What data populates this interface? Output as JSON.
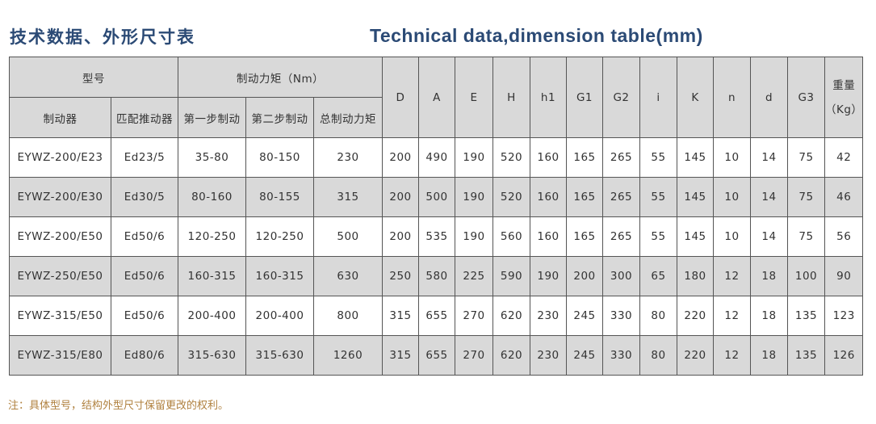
{
  "title_cn": "技术数据、外形尺寸表",
  "title_en": "Technical data,dimension table(mm)",
  "table": {
    "group_model": "型号",
    "group_torque": "制动力矩（Nm）",
    "sub_headers": [
      "制动器",
      "匹配推动器",
      "第一步制动",
      "第二步制动",
      "总制动力矩"
    ],
    "dim_headers": [
      "D",
      "A",
      "E",
      "H",
      "h1",
      "G1",
      "G2",
      "i",
      "K",
      "n",
      "d",
      "G3"
    ],
    "weight_header": "重量",
    "weight_unit": "（Kg）",
    "rows": [
      [
        "EYWZ-200/E23",
        "Ed23/5",
        "35-80",
        "80-150",
        "230",
        "200",
        "490",
        "190",
        "520",
        "160",
        "165",
        "265",
        "55",
        "145",
        "10",
        "14",
        "75",
        "42"
      ],
      [
        "EYWZ-200/E30",
        "Ed30/5",
        "80-160",
        "80-155",
        "315",
        "200",
        "500",
        "190",
        "520",
        "160",
        "165",
        "265",
        "55",
        "145",
        "10",
        "14",
        "75",
        "46"
      ],
      [
        "EYWZ-200/E50",
        "Ed50/6",
        "120-250",
        "120-250",
        "500",
        "200",
        "535",
        "190",
        "560",
        "160",
        "165",
        "265",
        "55",
        "145",
        "10",
        "14",
        "75",
        "56"
      ],
      [
        "EYWZ-250/E50",
        "Ed50/6",
        "160-315",
        "160-315",
        "630",
        "250",
        "580",
        "225",
        "590",
        "190",
        "200",
        "300",
        "65",
        "180",
        "12",
        "18",
        "100",
        "90"
      ],
      [
        "EYWZ-315/E50",
        "Ed50/6",
        "200-400",
        "200-400",
        "800",
        "315",
        "655",
        "270",
        "620",
        "230",
        "245",
        "330",
        "80",
        "220",
        "12",
        "18",
        "135",
        "123"
      ],
      [
        "EYWZ-315/E80",
        "Ed80/6",
        "315-630",
        "315-630",
        "1260",
        "315",
        "655",
        "270",
        "620",
        "230",
        "245",
        "330",
        "80",
        "220",
        "12",
        "18",
        "135",
        "126"
      ]
    ]
  },
  "note": "注：具体型号，结构外型尺寸保留更改的权利。",
  "colors": {
    "title": "#2b4a75",
    "header_bg": "#d9d9d9",
    "note": "#b0813f"
  }
}
